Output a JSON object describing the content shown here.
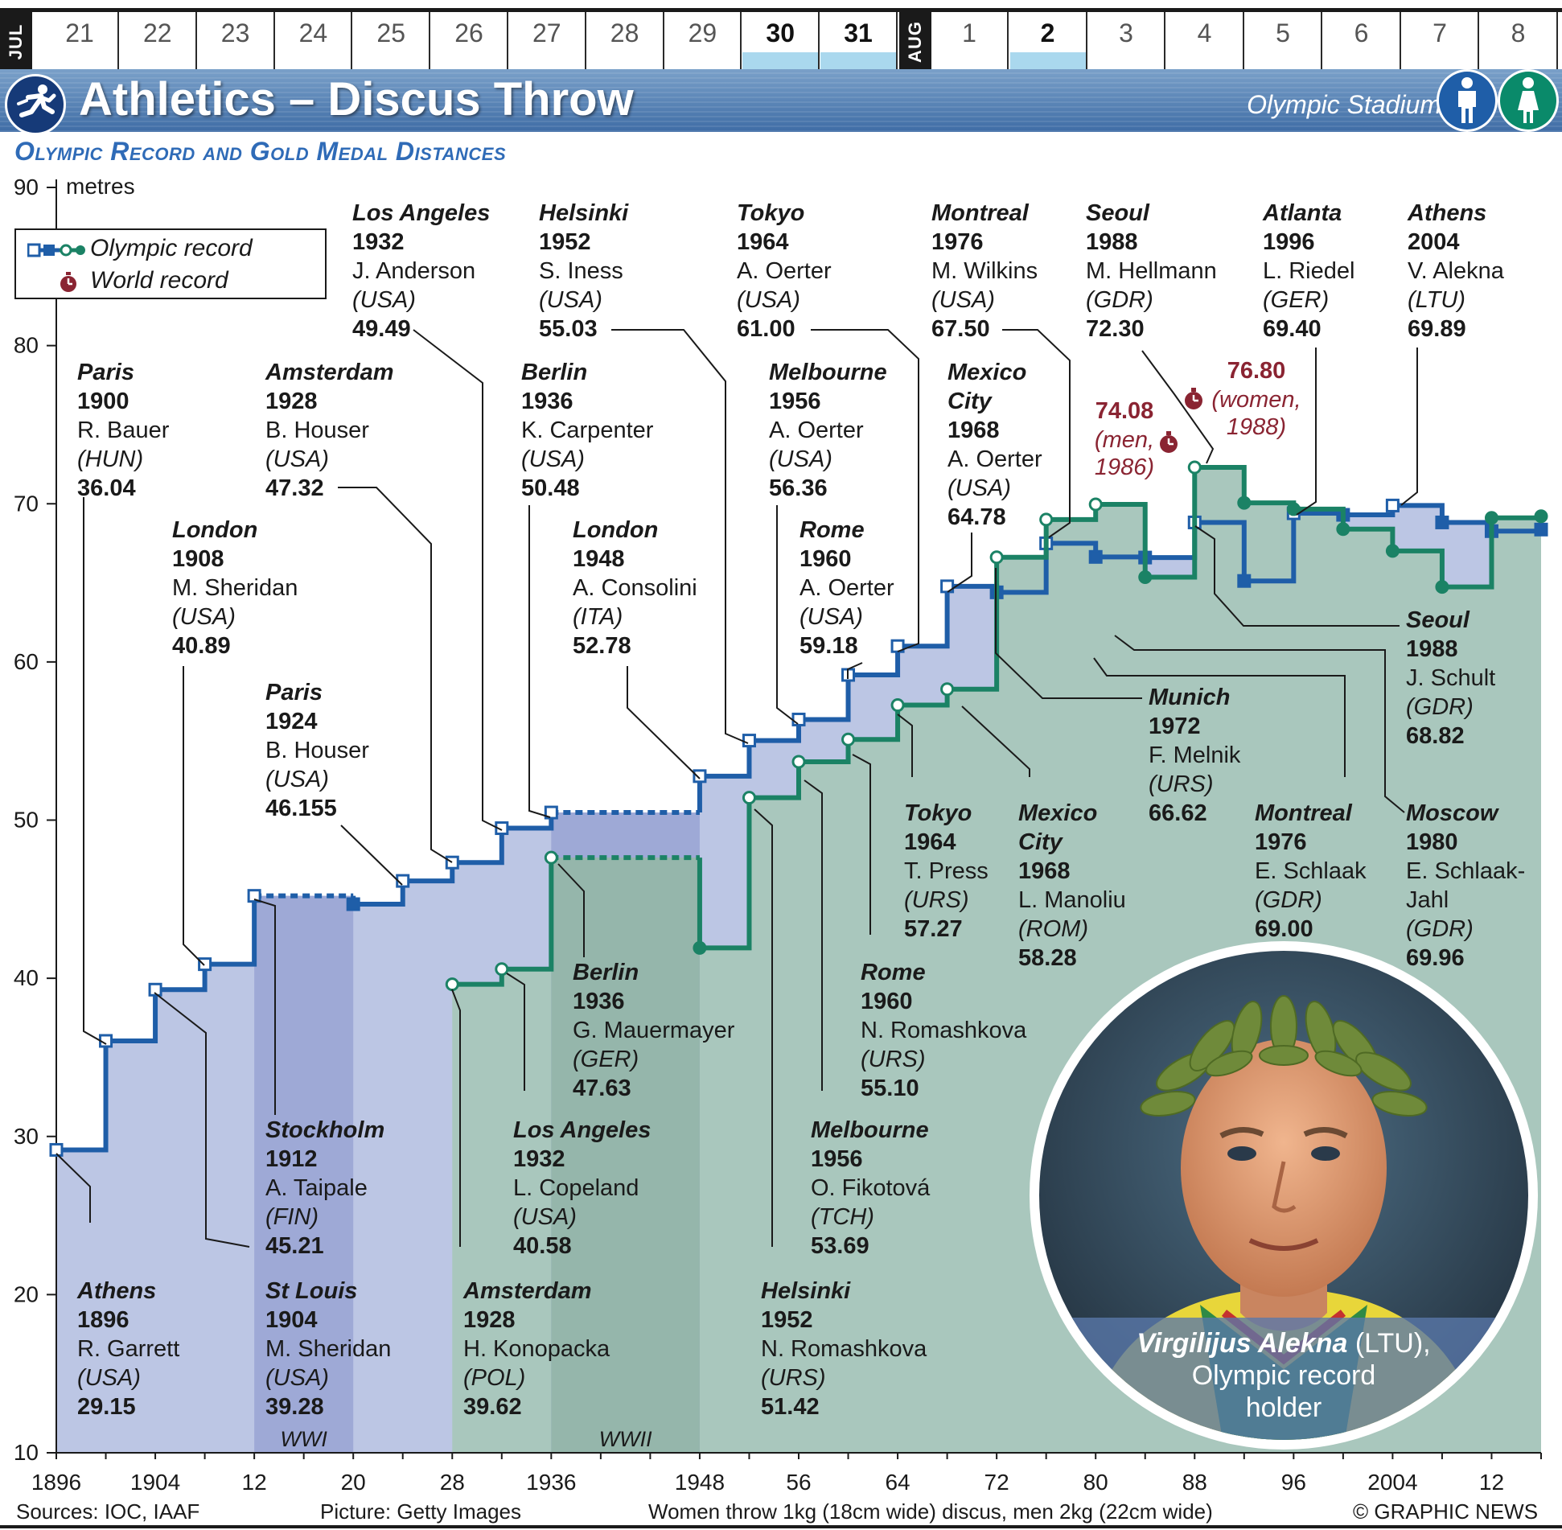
{
  "dates": {
    "months": [
      {
        "label": "JUL"
      },
      {
        "label": "AUG"
      }
    ],
    "days": [
      {
        "label": "21",
        "event": false
      },
      {
        "label": "22",
        "event": false
      },
      {
        "label": "23",
        "event": false
      },
      {
        "label": "24",
        "event": false
      },
      {
        "label": "25",
        "event": false
      },
      {
        "label": "26",
        "event": false
      },
      {
        "label": "27",
        "event": false
      },
      {
        "label": "28",
        "event": false
      },
      {
        "label": "29",
        "event": false
      },
      {
        "label": "30",
        "event": true
      },
      {
        "label": "31",
        "event": true
      },
      {
        "label": "1",
        "event": false
      },
      {
        "label": "2",
        "event": true
      },
      {
        "label": "3",
        "event": false
      },
      {
        "label": "4",
        "event": false
      },
      {
        "label": "5",
        "event": false
      },
      {
        "label": "6",
        "event": false
      },
      {
        "label": "7",
        "event": false
      },
      {
        "label": "8",
        "event": false
      }
    ]
  },
  "header": {
    "title": "Athletics – Discus Throw",
    "venue": "Olympic Stadium",
    "subtitle": "Olympic Record and Gold Medal Distances",
    "sport_icon": "athletics-runner-icon",
    "men_icon": "man-icon",
    "women_icon": "woman-icon",
    "men_color": "#1f5ea8",
    "women_color": "#0a8a6a"
  },
  "legend": {
    "olympic_record": "Olympic record",
    "world_record": "World record",
    "world_record_icon": "stopwatch-icon"
  },
  "colors": {
    "men": "#1f5ea8",
    "women": "#1b8265",
    "men_fill": "#bcc6e4",
    "women_fill": "#a9c7bd",
    "war_fill_men": "#9ea9d6",
    "war_fill_women": "#95b6ab",
    "world_record": "#8a2432"
  },
  "chart_data": {
    "type": "line",
    "step": true,
    "ylabel": "metres",
    "ylim": [
      10,
      90
    ],
    "yticks": [
      10,
      20,
      30,
      40,
      50,
      60,
      70,
      80,
      90
    ],
    "xlim": [
      1896,
      2016
    ],
    "xtick_labels": [
      "1896",
      "1904",
      "12",
      "20",
      "28",
      "1936",
      "1948",
      "56",
      "64",
      "72",
      "80",
      "88",
      "96",
      "2004",
      "12"
    ],
    "war_periods": [
      {
        "label": "WWI",
        "from": 1912,
        "to": 1920
      },
      {
        "label": "WWII",
        "from": 1936,
        "to": 1948
      }
    ],
    "series": [
      {
        "name": "Men",
        "color": "#1f5ea8",
        "points": [
          {
            "x": 1896,
            "y": 29.15
          },
          {
            "x": 1900,
            "y": 36.04
          },
          {
            "x": 1904,
            "y": 39.28
          },
          {
            "x": 1908,
            "y": 40.89
          },
          {
            "x": 1912,
            "y": 45.21
          },
          {
            "x": 1920,
            "y": 44.685
          },
          {
            "x": 1924,
            "y": 46.155
          },
          {
            "x": 1928,
            "y": 47.32
          },
          {
            "x": 1932,
            "y": 49.49
          },
          {
            "x": 1936,
            "y": 50.48
          },
          {
            "x": 1948,
            "y": 52.78
          },
          {
            "x": 1952,
            "y": 55.03
          },
          {
            "x": 1956,
            "y": 56.36
          },
          {
            "x": 1960,
            "y": 59.18
          },
          {
            "x": 1964,
            "y": 61.0
          },
          {
            "x": 1968,
            "y": 64.78
          },
          {
            "x": 1972,
            "y": 64.4
          },
          {
            "x": 1976,
            "y": 67.5
          },
          {
            "x": 1980,
            "y": 66.64
          },
          {
            "x": 1984,
            "y": 66.6
          },
          {
            "x": 1988,
            "y": 68.82
          },
          {
            "x": 1992,
            "y": 65.12
          },
          {
            "x": 1996,
            "y": 69.4
          },
          {
            "x": 2000,
            "y": 69.3
          },
          {
            "x": 2004,
            "y": 69.89
          },
          {
            "x": 2008,
            "y": 68.82
          },
          {
            "x": 2012,
            "y": 68.27
          },
          {
            "x": 2016,
            "y": 68.37
          }
        ]
      },
      {
        "name": "Women",
        "color": "#1b8265",
        "points": [
          {
            "x": 1928,
            "y": 39.62
          },
          {
            "x": 1932,
            "y": 40.58
          },
          {
            "x": 1936,
            "y": 47.63
          },
          {
            "x": 1948,
            "y": 41.92
          },
          {
            "x": 1952,
            "y": 51.42
          },
          {
            "x": 1956,
            "y": 53.69
          },
          {
            "x": 1960,
            "y": 55.1
          },
          {
            "x": 1964,
            "y": 57.27
          },
          {
            "x": 1968,
            "y": 58.28
          },
          {
            "x": 1972,
            "y": 66.62
          },
          {
            "x": 1976,
            "y": 69.0
          },
          {
            "x": 1980,
            "y": 69.96
          },
          {
            "x": 1984,
            "y": 65.36
          },
          {
            "x": 1988,
            "y": 72.3
          },
          {
            "x": 1992,
            "y": 70.06
          },
          {
            "x": 1996,
            "y": 69.66
          },
          {
            "x": 2000,
            "y": 68.4
          },
          {
            "x": 2004,
            "y": 67.02
          },
          {
            "x": 2008,
            "y": 64.74
          },
          {
            "x": 2012,
            "y": 69.11
          },
          {
            "x": 2016,
            "y": 69.21
          }
        ]
      }
    ],
    "world_records": [
      {
        "label": "74.08",
        "note": "(men,",
        "note2": "1986)",
        "x": 1986,
        "y": 74.08
      },
      {
        "label": "76.80",
        "note": "(women,",
        "note2": "1988)",
        "x": 1988,
        "y": 76.8
      }
    ],
    "annotations": [
      {
        "series": "Men",
        "x": 1896,
        "city": "Athens",
        "year": "1896",
        "athlete": "R. Garrett",
        "country": "(USA)",
        "distance": "29.15"
      },
      {
        "series": "Men",
        "x": 1900,
        "city": "Paris",
        "year": "1900",
        "athlete": "R. Bauer",
        "country": "(HUN)",
        "distance": "36.04"
      },
      {
        "series": "Men",
        "x": 1904,
        "city": "St Louis",
        "year": "1904",
        "athlete": "M. Sheridan",
        "country": "(USA)",
        "distance": "39.28"
      },
      {
        "series": "Men",
        "x": 1908,
        "city": "London",
        "year": "1908",
        "athlete": "M. Sheridan",
        "country": "(USA)",
        "distance": "40.89"
      },
      {
        "series": "Men",
        "x": 1912,
        "city": "Stockholm",
        "year": "1912",
        "athlete": "A. Taipale",
        "country": "(FIN)",
        "distance": "45.21"
      },
      {
        "series": "Men",
        "x": 1924,
        "city": "Paris",
        "year": "1924",
        "athlete": "B. Houser",
        "country": "(USA)",
        "distance": "46.155"
      },
      {
        "series": "Men",
        "x": 1928,
        "city": "Amsterdam",
        "year": "1928",
        "athlete": "B. Houser",
        "country": "(USA)",
        "distance": "47.32"
      },
      {
        "series": "Men",
        "x": 1932,
        "city": "Los Angeles",
        "year": "1932",
        "athlete": "J. Anderson",
        "country": "(USA)",
        "distance": "49.49"
      },
      {
        "series": "Men",
        "x": 1936,
        "city": "Berlin",
        "year": "1936",
        "athlete": "K. Carpenter",
        "country": "(USA)",
        "distance": "50.48"
      },
      {
        "series": "Men",
        "x": 1948,
        "city": "London",
        "year": "1948",
        "athlete": "A. Consolini",
        "country": "(ITA)",
        "distance": "52.78"
      },
      {
        "series": "Men",
        "x": 1952,
        "city": "Helsinki",
        "year": "1952",
        "athlete": "S. Iness",
        "country": "(USA)",
        "distance": "55.03"
      },
      {
        "series": "Men",
        "x": 1956,
        "city": "Melbourne",
        "year": "1956",
        "athlete": "A. Oerter",
        "country": "(USA)",
        "distance": "56.36"
      },
      {
        "series": "Men",
        "x": 1960,
        "city": "Rome",
        "year": "1960",
        "athlete": "A. Oerter",
        "country": "(USA)",
        "distance": "59.18"
      },
      {
        "series": "Men",
        "x": 1964,
        "city": "Tokyo",
        "year": "1964",
        "athlete": "A. Oerter",
        "country": "(USA)",
        "distance": "61.00"
      },
      {
        "series": "Men",
        "x": 1968,
        "city": "Mexico City",
        "year": "1968",
        "athlete": "A. Oerter",
        "country": "(USA)",
        "distance": "64.78"
      },
      {
        "series": "Men",
        "x": 1976,
        "city": "Montreal",
        "year": "1976",
        "athlete": "M. Wilkins",
        "country": "(USA)",
        "distance": "67.50"
      },
      {
        "series": "Men",
        "x": 1988,
        "city": "Seoul",
        "year": "1988",
        "athlete": "J. Schult",
        "country": "(GDR)",
        "distance": "68.82"
      },
      {
        "series": "Men",
        "x": 1996,
        "city": "Atlanta",
        "year": "1996",
        "athlete": "L. Riedel",
        "country": "(GER)",
        "distance": "69.40"
      },
      {
        "series": "Men",
        "x": 2004,
        "city": "Athens",
        "year": "2004",
        "athlete": "V. Alekna",
        "country": "(LTU)",
        "distance": "69.89"
      },
      {
        "series": "Women",
        "x": 1928,
        "city": "Amsterdam",
        "year": "1928",
        "athlete": "H. Konopacka",
        "country": "(POL)",
        "distance": "39.62"
      },
      {
        "series": "Women",
        "x": 1932,
        "city": "Los Angeles",
        "year": "1932",
        "athlete": "L. Copeland",
        "country": "(USA)",
        "distance": "40.58"
      },
      {
        "series": "Women",
        "x": 1936,
        "city": "Berlin",
        "year": "1936",
        "athlete": "G. Mauermayer",
        "country": "(GER)",
        "distance": "47.63"
      },
      {
        "series": "Women",
        "x": 1952,
        "city": "Helsinki",
        "year": "1952",
        "athlete": "N. Romashkova",
        "country": "(URS)",
        "distance": "51.42"
      },
      {
        "series": "Women",
        "x": 1956,
        "city": "Melbourne",
        "year": "1956",
        "athlete": "O. Fikotová",
        "country": "(TCH)",
        "distance": "53.69"
      },
      {
        "series": "Women",
        "x": 1960,
        "city": "Rome",
        "year": "1960",
        "athlete": "N. Romashkova",
        "country": "(URS)",
        "distance": "55.10"
      },
      {
        "series": "Women",
        "x": 1964,
        "city": "Tokyo",
        "year": "1964",
        "athlete": "T. Press",
        "country": "(URS)",
        "distance": "57.27"
      },
      {
        "series": "Women",
        "x": 1968,
        "city": "Mexico City",
        "year": "1968",
        "athlete": "L. Manoliu",
        "country": "(ROM)",
        "distance": "58.28"
      },
      {
        "series": "Women",
        "x": 1972,
        "city": "Munich",
        "year": "1972",
        "athlete": "F. Melnik",
        "country": "(URS)",
        "distance": "66.62"
      },
      {
        "series": "Women",
        "x": 1976,
        "city": "Montreal",
        "year": "1976",
        "athlete": "E. Schlaak",
        "country": "(GDR)",
        "distance": "69.00"
      },
      {
        "series": "Women",
        "x": 1980,
        "city": "Moscow",
        "year": "1980",
        "athlete": "E. Schlaak-Jahl",
        "country": "(GDR)",
        "distance": "69.96"
      },
      {
        "series": "Women",
        "x": 1988,
        "city": "Seoul",
        "year": "1988",
        "athlete": "M. Hellmann",
        "country": "(GDR)",
        "distance": "72.30"
      }
    ]
  },
  "photo": {
    "name": "Virgilijus Alekna",
    "country": "(LTU),",
    "caption_line2": "Olympic record",
    "caption_line3": "holder"
  },
  "footer": {
    "sources": "Sources: IOC, IAAF",
    "picture": "Picture: Getty Images",
    "note": "Women throw 1kg (18cm wide) discus, men 2kg (22cm wide)",
    "credit": "© GRAPHIC NEWS"
  }
}
